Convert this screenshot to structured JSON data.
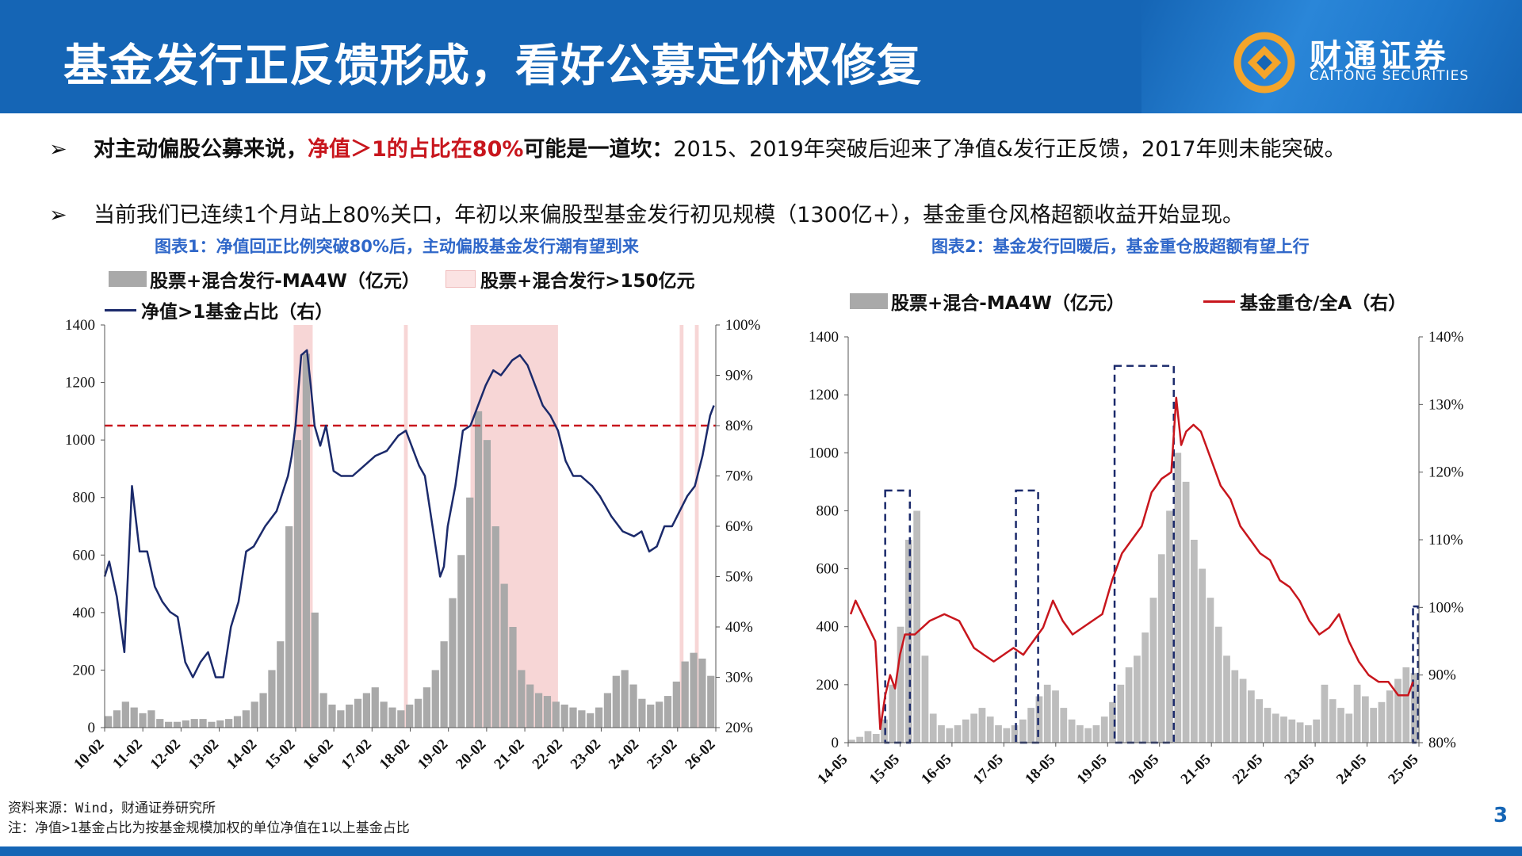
{
  "header": {
    "title": "基金发行正反馈形成，看好公募定价权修复",
    "logo_cn": "财通证券",
    "logo_en": "CAITONG SECURITIES"
  },
  "bullets": [
    {
      "pre": "对主动偏股公募来说，",
      "hl": "净值＞1的占比在80%",
      "mid": "可能是一道坎：",
      "post": "2015、2019年突破后迎来了净值&发行正反馈，2017年则未能突破。"
    },
    {
      "text": "当前我们已连续1个月站上80%关口，年初以来偏股型基金发行初见规模（1300亿+），基金重仓风格超额收益开始显现。"
    }
  ],
  "chart_data": [
    {
      "type": "bar+line",
      "title": "图表1：净值回正比例突破80%后，主动偏股基金发行潮有望到来",
      "legend": [
        "股票+混合发行-MA4W（亿元）",
        "股票+混合发行>150亿元",
        "净值>1基金占比（右）"
      ],
      "x_ticks": [
        "10-02",
        "11-02",
        "12-02",
        "13-02",
        "14-02",
        "15-02",
        "16-02",
        "17-02",
        "18-02",
        "19-02",
        "20-02",
        "21-02",
        "22-02",
        "23-02",
        "24-02",
        "25-02",
        "26-02"
      ],
      "y_left": {
        "ticks": [
          "0",
          "200",
          "400",
          "600",
          "800",
          "1000",
          "1200",
          "1400"
        ],
        "range": [
          0,
          1400
        ]
      },
      "y_right": {
        "ticks": [
          "20%",
          "30%",
          "40%",
          "50%",
          "60%",
          "70%",
          "80%",
          "90%",
          "100%"
        ],
        "range": [
          20,
          100
        ]
      },
      "threshold_line": 80,
      "line_series": {
        "name": "净值>1基金占比（右）",
        "x": [
          2010.08,
          2010.2,
          2010.4,
          2010.6,
          2010.8,
          2011.0,
          2011.2,
          2011.4,
          2011.6,
          2011.8,
          2012.0,
          2012.2,
          2012.4,
          2012.6,
          2012.8,
          2013.0,
          2013.2,
          2013.4,
          2013.6,
          2013.8,
          2014.0,
          2014.3,
          2014.6,
          2014.9,
          2015.0,
          2015.1,
          2015.25,
          2015.4,
          2015.5,
          2015.6,
          2015.75,
          2015.9,
          2016.1,
          2016.3,
          2016.6,
          2016.9,
          2017.2,
          2017.5,
          2017.8,
          2018.0,
          2018.2,
          2018.35,
          2018.5,
          2018.7,
          2018.9,
          2019.0,
          2019.1,
          2019.3,
          2019.5,
          2019.7,
          2019.9,
          2020.1,
          2020.3,
          2020.5,
          2020.8,
          2021.0,
          2021.2,
          2021.4,
          2021.6,
          2021.8,
          2022.0,
          2022.2,
          2022.4,
          2022.6,
          2022.9,
          2023.1,
          2023.4,
          2023.7,
          2024.0,
          2024.2,
          2024.4,
          2024.6,
          2024.8,
          2025.0,
          2025.2,
          2025.4,
          2025.6,
          2025.8,
          2026.0,
          2026.1
        ],
        "values": [
          50,
          53,
          46,
          35,
          68,
          55,
          55,
          48,
          45,
          43,
          42,
          33,
          30,
          33,
          35,
          30,
          30,
          40,
          45,
          55,
          56,
          60,
          63,
          70,
          74,
          80,
          94,
          95,
          88,
          80,
          76,
          80,
          71,
          70,
          70,
          72,
          74,
          75,
          78,
          79,
          75,
          72,
          70,
          60,
          50,
          52,
          60,
          68,
          79,
          80,
          84,
          88,
          91,
          90,
          93,
          94,
          92,
          88,
          84,
          82,
          79,
          73,
          70,
          70,
          68,
          66,
          62,
          59,
          58,
          59,
          55,
          56,
          60,
          60,
          63,
          66,
          68,
          74,
          82,
          84
        ]
      },
      "bar_values": [
        40,
        60,
        90,
        70,
        50,
        60,
        30,
        20,
        20,
        25,
        30,
        30,
        20,
        25,
        30,
        40,
        60,
        90,
        120,
        200,
        300,
        700,
        1000,
        1300,
        400,
        120,
        80,
        60,
        80,
        100,
        120,
        140,
        90,
        70,
        60,
        80,
        100,
        140,
        200,
        300,
        450,
        600,
        800,
        1100,
        1000,
        700,
        500,
        350,
        200,
        150,
        120,
        110,
        90,
        80,
        70,
        60,
        50,
        70,
        120,
        180,
        200,
        150,
        100,
        80,
        90,
        110,
        160,
        230,
        260,
        240,
        180
      ],
      "issuance_windows": [
        [
          2015.05,
          2015.55
        ],
        [
          2017.95,
          2018.05
        ],
        [
          2019.7,
          2022.0
        ],
        [
          2025.2,
          2025.3
        ],
        [
          2025.6,
          2025.7
        ]
      ]
    },
    {
      "type": "bar+line",
      "title": "图表2：基金发行回暖后，基金重仓股超额有望上行",
      "legend": [
        "股票+混合-MA4W（亿元）",
        "基金重仓/全A（右）"
      ],
      "x_ticks": [
        "14-05",
        "15-05",
        "16-05",
        "17-05",
        "18-05",
        "19-05",
        "20-05",
        "21-05",
        "22-05",
        "23-05",
        "24-05",
        "25-05"
      ],
      "y_left": {
        "ticks": [
          "0",
          "200",
          "400",
          "600",
          "800",
          "1000",
          "1200",
          "1400"
        ],
        "range": [
          0,
          1400
        ]
      },
      "y_right": {
        "ticks": [
          "80%",
          "90%",
          "100%",
          "110%",
          "120%",
          "130%",
          "140%"
        ],
        "range": [
          80,
          140
        ]
      },
      "line_series": {
        "name": "基金重仓/全A（右）",
        "x": [
          2014.4,
          2014.5,
          2014.7,
          2014.9,
          2015.0,
          2015.1,
          2015.2,
          2015.3,
          2015.4,
          2015.5,
          2015.7,
          2016.0,
          2016.3,
          2016.6,
          2016.9,
          2017.1,
          2017.3,
          2017.5,
          2017.7,
          2017.9,
          2018.0,
          2018.1,
          2018.3,
          2018.5,
          2018.7,
          2018.9,
          2019.1,
          2019.3,
          2019.5,
          2019.7,
          2019.9,
          2020.1,
          2020.3,
          2020.5,
          2020.7,
          2020.9,
          2021.0,
          2021.1,
          2021.2,
          2021.35,
          2021.5,
          2021.7,
          2021.9,
          2022.1,
          2022.3,
          2022.5,
          2022.7,
          2022.9,
          2023.1,
          2023.3,
          2023.5,
          2023.7,
          2023.9,
          2024.1,
          2024.3,
          2024.5,
          2024.7,
          2024.9,
          2025.1,
          2025.3,
          2025.5,
          2025.7,
          2025.8
        ],
        "values": [
          99,
          101,
          98,
          95,
          82,
          87,
          90,
          88,
          93,
          96,
          96,
          98,
          99,
          98,
          94,
          93,
          92,
          93,
          94,
          93,
          94,
          95,
          97,
          101,
          98,
          96,
          97,
          98,
          99,
          104,
          108,
          110,
          112,
          117,
          119,
          120,
          131,
          124,
          126,
          127,
          126,
          122,
          118,
          116,
          112,
          110,
          108,
          107,
          104,
          103,
          101,
          98,
          96,
          97,
          99,
          95,
          92,
          90,
          89,
          89,
          87,
          87,
          89
        ]
      },
      "bar_values": [
        10,
        20,
        40,
        30,
        80,
        200,
        400,
        700,
        800,
        300,
        100,
        60,
        50,
        60,
        80,
        100,
        120,
        90,
        60,
        50,
        60,
        80,
        120,
        160,
        200,
        180,
        120,
        80,
        60,
        50,
        60,
        90,
        140,
        200,
        260,
        300,
        380,
        500,
        650,
        800,
        1000,
        900,
        700,
        600,
        500,
        400,
        300,
        250,
        220,
        180,
        150,
        120,
        100,
        90,
        80,
        70,
        60,
        80,
        200,
        150,
        120,
        100,
        200,
        160,
        120,
        140,
        180,
        220,
        260,
        240
      ],
      "boxes": [
        {
          "x": [
            2015.1,
            2015.6
          ],
          "top": 870
        },
        {
          "x": [
            2017.75,
            2018.2
          ],
          "top": 870
        },
        {
          "x": [
            2019.75,
            2020.95
          ],
          "top": 1300
        },
        {
          "x": [
            2025.8,
            2025.9
          ],
          "top": 470
        }
      ]
    }
  ],
  "footer": {
    "source": "资料来源：Wind，财通证券研究所",
    "note": "注：净值>1基金占比为按基金规模加权的单位净值在1以上基金占比",
    "page": "3"
  }
}
